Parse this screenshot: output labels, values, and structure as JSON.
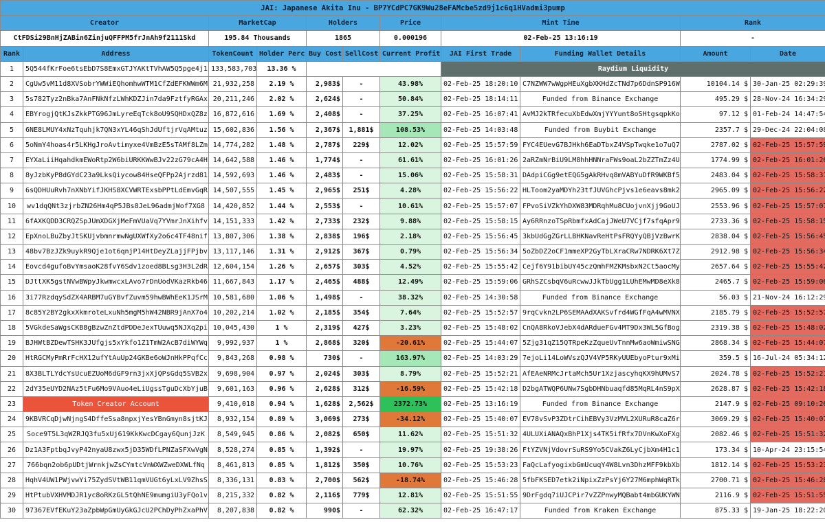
{
  "title": "JAI: Japanese Akita Inu - BP7YCdPC7GK9Wu28eFAMcbe5zd9j1c6q1HVadmi3pump",
  "summary": {
    "headers": [
      "Creator",
      "MarketCap",
      "Holders",
      "Price",
      "Mint Time",
      "Rank"
    ],
    "values": [
      "CtFDSi29BnHjZABin6ZinjuQFFPM5frJnAh9f2111Skd",
      "195.84 Thousands",
      "1865",
      "0.000196",
      "02-Feb-25 13:16:19",
      "-"
    ]
  },
  "columns": [
    "Rank",
    "Address",
    "TokenCount",
    "Holder Perc",
    "Buy Cost",
    "SellCost",
    "Current Profit",
    "JAI First Trade",
    "Funding Wallet Details",
    "Amount",
    "Date"
  ],
  "colors": {
    "header_blue": "#4aa6df",
    "profit_green_light": "#d9f5df",
    "profit_green_mid": "#a6e7b8",
    "profit_green_bright": "#2ec15a",
    "loss_orange": "#e0783a",
    "recent_date_red": "#e36a5e",
    "raydium_gray": "#5f6f6c",
    "creator_red": "#e9543b"
  },
  "special_labels": {
    "raydium": "Raydium Liquidity",
    "creator": "Token Creator Account"
  },
  "rows": [
    {
      "rank": "1",
      "address": "5Q544fKrFoe6tsEbD7S8EmxGTJYAKtTVhAW5Q5pge4j1",
      "tokens": "133,583,703",
      "perc": "13.36 %",
      "buy": "",
      "sell": "",
      "profit": "",
      "profit_level": "none",
      "first_trade": "",
      "funding": "",
      "amount": "",
      "date": "",
      "date_red": false,
      "special": "raydium"
    },
    {
      "rank": "2",
      "address": "CgUw5vM11d8XVSobrYWWiEQhomhwWTM1CfZdEFKWWm6M",
      "tokens": "21,932,258",
      "perc": "2.19 %",
      "buy": "2,983$",
      "sell": "-",
      "profit": "43.98%",
      "profit_level": "g",
      "first_trade": "02-Feb-25 18:20:10",
      "funding": "C7NZWW7wWgpHEuXgbXKHdZcTNd7p6DdnSP916WB23BwC",
      "funding_center": false,
      "amount": "10104.14 $",
      "date": "30-Jan-25 02:29:39",
      "date_red": false
    },
    {
      "rank": "3",
      "address": "5s782Tyz2nBka7AnFNkNfzLWhKDZJin7da9FztfyRGAx",
      "tokens": "20,211,246",
      "perc": "2.02 %",
      "buy": "2,624$",
      "sell": "-",
      "profit": "50.84%",
      "profit_level": "g",
      "first_trade": "02-Feb-25 18:14:11",
      "funding": "Funded from Binance Exchange",
      "funding_center": true,
      "amount": "495.29 $",
      "date": "28-Nov-24 16:34:29",
      "date_red": false
    },
    {
      "rank": "4",
      "address": "EBYrogjQtKJsZkkPTG96JmLyreEqTck8oU9SQHDxQZ8z",
      "tokens": "16,872,616",
      "perc": "1.69 %",
      "buy": "2,408$",
      "sell": "-",
      "profit": "37.25%",
      "profit_level": "g",
      "first_trade": "02-Feb-25 16:07:41",
      "funding": "AvMJ2kTRfecuXbEdwXmjYYYunt8oSHtgsqpkKocau7yC",
      "funding_center": false,
      "amount": "97.12 $",
      "date": "01-Feb-24 14:47:54",
      "date_red": false
    },
    {
      "rank": "5",
      "address": "6NE8LMUY4xNzTquhjk7QN3xYL46qShJdUftjrVqAMtuz",
      "tokens": "15,602,836",
      "perc": "1.56 %",
      "buy": "2,367$",
      "sell": "1,881$",
      "profit": "108.53%",
      "profit_level": "m",
      "first_trade": "02-Feb-25 14:03:48",
      "funding": "Funded from Buybit Exchange",
      "funding_center": true,
      "amount": "2357.7 $",
      "date": "29-Dec-24 22:04:08",
      "date_red": false
    },
    {
      "rank": "6",
      "address": "5oNmY4hoas4r5LKHgJroAvtimyxe4VmBzE5sTAMf8LZm",
      "tokens": "14,774,282",
      "perc": "1.48 %",
      "buy": "2,787$",
      "sell": "229$",
      "profit": "12.02%",
      "profit_level": "g",
      "first_trade": "02-Feb-25 15:57:59",
      "funding": "FYC4EUevG7BJHkh6EaDTbxZ4VSpTwqke1o7uQ7Px8RrC",
      "funding_center": false,
      "amount": "2787.02 $",
      "date": "02-Feb-25 15:57:59",
      "date_red": true
    },
    {
      "rank": "7",
      "address": "EYXaLiiHqahdkmEWoRtp2W6biURKKWwBJv22zG79cA4H",
      "tokens": "14,642,588",
      "perc": "1.46 %",
      "buy": "1,774$",
      "sell": "-",
      "profit": "61.61%",
      "profit_level": "g",
      "first_trade": "02-Feb-25 16:01:26",
      "funding": "2aRZmNrBiU9LM8hhHNNraFWs9oaL2bZZTmZz4Uo2bfZK",
      "funding_center": false,
      "amount": "1774.99 $",
      "date": "02-Feb-25 16:01:26",
      "date_red": true
    },
    {
      "rank": "8",
      "address": "8yJzbKyP8dGYdC23a9LksQiycow84HseQFPp2Ajrzd81",
      "tokens": "14,592,693",
      "perc": "1.46 %",
      "buy": "2,483$",
      "sell": "-",
      "profit": "15.06%",
      "profit_level": "g",
      "first_trade": "02-Feb-25 15:58:31",
      "funding": "DAdpiCGg9etEQG5gAkRHvq8mVABYuDfR9WKBf5swcuG1",
      "funding_center": false,
      "amount": "2483.04 $",
      "date": "02-Feb-25 15:58:31",
      "date_red": true
    },
    {
      "rank": "9",
      "address": "6sQDHUuRvh7nXNbYifJKHS8XCVWRTExsbPPtLdEmvGqR",
      "tokens": "14,507,555",
      "perc": "1.45 %",
      "buy": "2,965$",
      "sell": "251$",
      "profit": "4.28%",
      "profit_level": "g",
      "first_trade": "02-Feb-25 15:56:22",
      "funding": "HLToom2yaMDYh23tfJUVGhcPjvs1e6eavs8mk2Y37GKX",
      "funding_center": false,
      "amount": "2965.09 $",
      "date": "02-Feb-25 15:56:22",
      "date_red": true
    },
    {
      "rank": "10",
      "address": "wv1dqQNt3zjrbZN26Hm4qP5JBs8JeL96admjWof7XG8",
      "tokens": "14,420,852",
      "perc": "1.44 %",
      "buy": "2,553$",
      "sell": "-",
      "profit": "10.61%",
      "profit_level": "g",
      "first_trade": "02-Feb-25 15:57:07",
      "funding": "FPvoSiVZkYhDXW83MDRqhMu8CUojvnXjj9GoUJcMnD9w",
      "funding_center": false,
      "amount": "2553.96 $",
      "date": "02-Feb-25 15:57:07",
      "date_red": true
    },
    {
      "rank": "11",
      "address": "6fAXKQDD3CRQZSpJUmXDGXjMeFmVUaVq7YVmrJnXihfv",
      "tokens": "14,151,333",
      "perc": "1.42 %",
      "buy": "2,733$",
      "sell": "232$",
      "profit": "9.88%",
      "profit_level": "g",
      "first_trade": "02-Feb-25 15:58:15",
      "funding": "Ay6RRnzoTSpRbmfxAdCajJWeU7VCjf7sfqApr9xAw2h7",
      "funding_center": false,
      "amount": "2733.36 $",
      "date": "02-Feb-25 15:58:15",
      "date_red": true
    },
    {
      "rank": "12",
      "address": "EpXnoLBuZbyJtSKUjvbmnrmwNgUXWfXy2o6c4TF48nif",
      "tokens": "13,807,306",
      "perc": "1.38 %",
      "buy": "2,838$",
      "sell": "196$",
      "profit": "2.18%",
      "profit_level": "g",
      "first_trade": "02-Feb-25 15:56:45",
      "funding": "3kbUdGgZGrLLBHKNavReHtPsFRQYyQBjVzBwrKQcMj7Q",
      "funding_center": false,
      "amount": "2838.04 $",
      "date": "02-Feb-25 15:56:45",
      "date_red": true
    },
    {
      "rank": "13",
      "address": "48bv7BzJZk9uykR9Qje1ot6qnjP14HtDeyZLajjFPjbv",
      "tokens": "13,117,146",
      "perc": "1.31 %",
      "buy": "2,912$",
      "sell": "367$",
      "profit": "0.79%",
      "profit_level": "g",
      "first_trade": "02-Feb-25 15:56:34",
      "funding": "5oZbDZ2oCF1mmeXP2GyTbLXraCRw7NDRK6Xt7Zjg7UhHL",
      "funding_center": false,
      "amount": "2912.98 $",
      "date": "02-Feb-25 15:56:34",
      "date_red": true
    },
    {
      "rank": "14",
      "address": "Eovcd4gufoBvYmsaoK28fvY6Sdv1zoed8BLsg3H3L2dR",
      "tokens": "12,604,154",
      "perc": "1.26 %",
      "buy": "2,657$",
      "sell": "303$",
      "profit": "4.52%",
      "profit_level": "g",
      "first_trade": "02-Feb-25 15:55:42",
      "funding": "Cejf6Y91bibUY45czQmhFMZKMsbxN2Ct5aocMy2iFoUW",
      "funding_center": false,
      "amount": "2657.64 $",
      "date": "02-Feb-25 15:55:42",
      "date_red": true
    },
    {
      "rank": "15",
      "address": "DJttXK5gstNVwBWpyJkwmwcxLAvo7rDnUodVKazRkb46",
      "tokens": "11,667,843",
      "perc": "1.17 %",
      "buy": "2,465$",
      "sell": "488$",
      "profit": "12.49%",
      "profit_level": "g",
      "first_trade": "02-Feb-25 15:59:06",
      "funding": "GRhSZCsbqV6uRcwwJJkTbUgg1LUhEMwMD8eXk8CSPgV1",
      "funding_center": false,
      "amount": "2465.7 $",
      "date": "02-Feb-25 15:59:06",
      "date_red": true
    },
    {
      "rank": "16",
      "address": "3i77RzdqySdZX4ARBM7uGYBvfZuvm59hwBWhEeK1JSrM",
      "tokens": "10,581,680",
      "perc": "1.06 %",
      "buy": "1,498$",
      "sell": "-",
      "profit": "38.32%",
      "profit_level": "g",
      "first_trade": "02-Feb-25 14:30:58",
      "funding": "Funded from Binance Exchange",
      "funding_center": true,
      "amount": "56.03 $",
      "date": "21-Nov-24 16:12:29",
      "date_red": false
    },
    {
      "rank": "17",
      "address": "8c85Y2BY2gkxXkmroteLxuNh5mgM5hW42NBR9jAnX7o4",
      "tokens": "10,202,214",
      "perc": "1.02 %",
      "buy": "2,185$",
      "sell": "354$",
      "profit": "7.64%",
      "profit_level": "g",
      "first_trade": "02-Feb-25 15:52:57",
      "funding": "9rqCvkn2LP6SEMAAdXAKSvfrd4WGfFqA4wMVNXrsqZL9",
      "funding_center": false,
      "amount": "2185.79 $",
      "date": "02-Feb-25 15:52:57",
      "date_red": true
    },
    {
      "rank": "18",
      "address": "5VGkdeSaWgsCKB8gBzwZnZtdPDDeJexTUuwq5NJXq2pi",
      "tokens": "10,045,430",
      "perc": "1 %",
      "buy": "2,319$",
      "sell": "427$",
      "profit": "3.23%",
      "profit_level": "g",
      "first_trade": "02-Feb-25 15:48:02",
      "funding": "CnQA8RkoVJebX4dARdueFGv4MT9Dx3WL5GfBog3DcDp",
      "funding_center": false,
      "amount": "2319.38 $",
      "date": "02-Feb-25 15:48:02",
      "date_red": true
    },
    {
      "rank": "19",
      "address": "BJHWtBZDewTSHK3JUfgjs5xYkfo1Z1TmW2AcB7diWYWq",
      "tokens": "9,992,937",
      "perc": "1 %",
      "buy": "2,868$",
      "sell": "320$",
      "profit": "-20.61%",
      "profit_level": "r",
      "first_trade": "02-Feb-25 15:44:07",
      "funding": "5Zjg31qZ15QTRpeKzZqueUvTnnMw6aoWmiwSNG4EUihB",
      "funding_center": false,
      "amount": "2868.34 $",
      "date": "02-Feb-25 15:44:07",
      "date_red": true
    },
    {
      "rank": "20",
      "address": "HtRGCMyPmRrFcHX12ufYtAuUp24GKBe6oWJnHkPPqfCc",
      "tokens": "9,843,268",
      "perc": "0.98 %",
      "buy": "730$",
      "sell": "-",
      "profit": "163.97%",
      "profit_level": "m",
      "first_trade": "02-Feb-25 14:03:29",
      "funding": "7ejoLi14LoWVszQJV4VP5RKyUUEbyoPtur9xMihMff39",
      "funding_center": false,
      "amount": "359.5 $",
      "date": "16-Jul-24 05:34:12",
      "date_red": false
    },
    {
      "rank": "21",
      "address": "8X3BLTLYdcYsUcuEZUoM6dGF9rn3jxXjQPsGdq5SVB2x",
      "tokens": "9,698,904",
      "perc": "0.97 %",
      "buy": "2,024$",
      "sell": "303$",
      "profit": "8.79%",
      "profit_level": "g",
      "first_trade": "02-Feb-25 15:52:21",
      "funding": "AfEAeNRMcJrtaMch5Ur1XzjascyhqKX9hUMvS7243vHw",
      "funding_center": false,
      "amount": "2024.78 $",
      "date": "02-Feb-25 15:52:21",
      "date_red": true
    },
    {
      "rank": "22",
      "address": "2dY35eUYD2NAz5tFu6Mo9VAuo4eLiUgssTguDcXbYjuB",
      "tokens": "9,601,163",
      "perc": "0.96 %",
      "buy": "2,628$",
      "sell": "312$",
      "profit": "-16.59%",
      "profit_level": "r",
      "first_trade": "02-Feb-25 15:42:18",
      "funding": "D2bgATWQP6UNw7SgbDHNbuaqfd85MqRL4nS9pX9STfqo",
      "funding_center": false,
      "amount": "2628.87 $",
      "date": "02-Feb-25 15:42:18",
      "date_red": true
    },
    {
      "rank": "23",
      "address": "Token Creator Account",
      "tokens": "9,410,018",
      "perc": "0.94 %",
      "buy": "1,628$",
      "sell": "2,562$",
      "profit": "2372.73%",
      "profit_level": "b",
      "first_trade": "02-Feb-25 13:16:19",
      "funding": "Funded from Binance Exchange",
      "funding_center": true,
      "amount": "2147.9 $",
      "date": "02-Feb-25 09:10:26",
      "date_red": true,
      "special": "creator"
    },
    {
      "rank": "24",
      "address": "9KBVRCqDjwNjngS4DffeSsa8npxjYesYBnGmyn8sjtKJ",
      "tokens": "8,932,154",
      "perc": "0.89 %",
      "buy": "3,069$",
      "sell": "273$",
      "profit": "-34.12%",
      "profit_level": "r",
      "first_trade": "02-Feb-25 15:40:07",
      "funding": "EV78vSvP3ZDtrCihEBVy3VzMVL2XURuR8caZ6rM3JMvi",
      "funding_center": false,
      "amount": "3069.29 $",
      "date": "02-Feb-25 15:40:07",
      "date_red": true
    },
    {
      "rank": "25",
      "address": "Soce9T5L3qWZRJQ3fu5xUj619KkKwcDCgay6QunjJzK",
      "tokens": "8,549,945",
      "perc": "0.86 %",
      "buy": "2,082$",
      "sell": "650$",
      "profit": "11.62%",
      "profit_level": "g",
      "first_trade": "02-Feb-25 15:51:32",
      "funding": "4ULUXiANAQxBhP1Xjs4TK5ifRfx7DVnKwXoFXgS5qUfM",
      "funding_center": false,
      "amount": "2082.46 $",
      "date": "02-Feb-25 15:51:32",
      "date_red": true
    },
    {
      "rank": "26",
      "address": "Dz1A3FptbqJvyP42nyaU8zwx5jD35WDfLPNZaSFXwVgN",
      "tokens": "8,528,274",
      "perc": "0.85 %",
      "buy": "1,392$",
      "sell": "-",
      "profit": "19.97%",
      "profit_level": "g",
      "first_trade": "02-Feb-25 19:38:26",
      "funding": "FtYZVNjVdovrSuRS9Yo5CVakZ6LyCjbXm4H1c1XeVVQr",
      "funding_center": false,
      "amount": "173.34 $",
      "date": "10-Apr-24 23:15:54",
      "date_red": false
    },
    {
      "rank": "27",
      "address": "766bqn2ob6pUDtjWrnkjwZsCYmtcVnWXWZweDXWLfNq",
      "tokens": "8,461,813",
      "perc": "0.85 %",
      "buy": "1,812$",
      "sell": "350$",
      "profit": "10.76%",
      "profit_level": "g",
      "first_trade": "02-Feb-25 15:53:23",
      "funding": "FaQcLafyogixbGmUcuqY4W8Lvn3DhzMFF9kbXbfNYws8C",
      "funding_center": false,
      "amount": "1812.14 $",
      "date": "02-Feb-25 15:53:23",
      "date_red": true
    },
    {
      "rank": "28",
      "address": "HqhV4UW1PWjvwYi75ZydSVtWB11qmVUGt6yLxLV9ZhsS",
      "tokens": "8,336,131",
      "perc": "0.83 %",
      "buy": "2,700$",
      "sell": "562$",
      "profit": "-18.74%",
      "profit_level": "r",
      "first_trade": "02-Feb-25 15:46:28",
      "funding": "5fbFKSED7etk2iNpixZzPsYj6Y27M6mphWqRTkJupmL7",
      "funding_center": false,
      "amount": "2700.71 $",
      "date": "02-Feb-25 15:46:28",
      "date_red": true
    },
    {
      "rank": "29",
      "address": "HtPtubVXHVMDJR1yc8oRKzGL5tQhNE9mumgiU3yFQo1v",
      "tokens": "8,215,332",
      "perc": "0.82 %",
      "buy": "2,116$",
      "sell": "779$",
      "profit": "12.81%",
      "profit_level": "g",
      "first_trade": "02-Feb-25 15:51:55",
      "funding": "9DrFgdq7iUJCPir7vZZPnwyMQBabt4mbGUKYWN5eryKk",
      "funding_center": false,
      "amount": "2116.9 $",
      "date": "02-Feb-25 15:51:55",
      "date_red": true
    },
    {
      "rank": "30",
      "address": "97367EVfEKuY23aZpbWpGmUyGkGJcU2PChDyPhZxaPhV",
      "tokens": "8,207,838",
      "perc": "0.82 %",
      "buy": "990$",
      "sell": "-",
      "profit": "62.32%",
      "profit_level": "g",
      "first_trade": "02-Feb-25 16:47:17",
      "funding": "Funded from Kraken Exchange",
      "funding_center": true,
      "amount": "875.33 $",
      "date": "19-Jan-25 18:22:20",
      "date_red": false
    }
  ]
}
